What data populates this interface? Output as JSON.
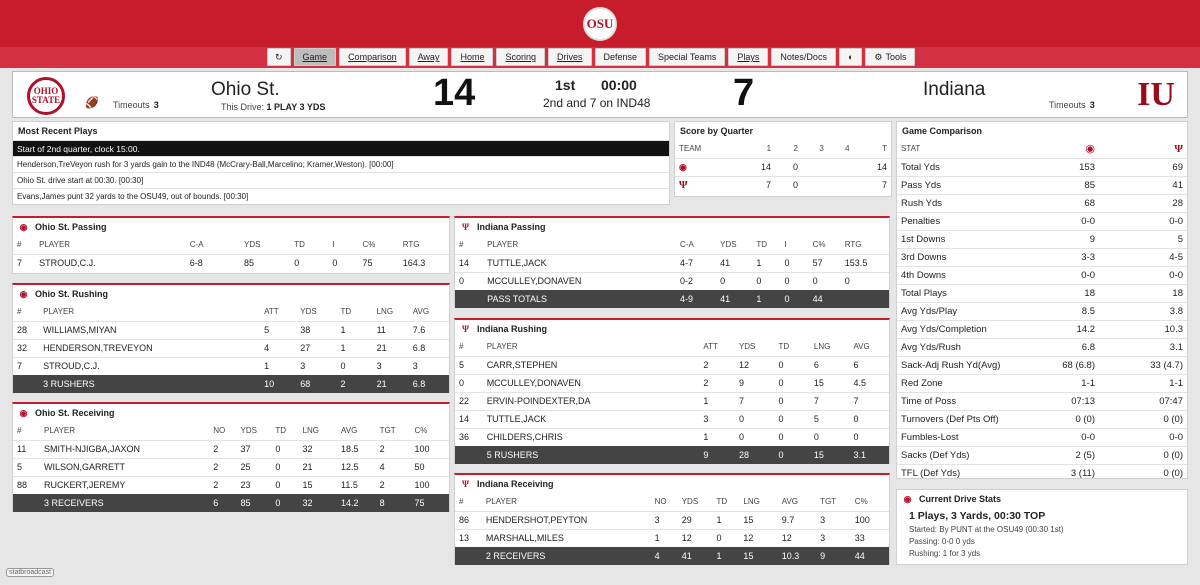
{
  "nav": [
    "Game",
    "Comparison",
    "Away",
    "Home",
    "Scoring",
    "Drives",
    "Defense",
    "Special Teams",
    "Plays",
    "Notes/Docs",
    "Tools"
  ],
  "header": {
    "away_name": "Ohio St.",
    "away_score": "14",
    "away_timeouts_label": "Timeouts",
    "away_timeouts": "3",
    "drive_label": "This Drive:",
    "drive_value": "1 PLAY 3 YDS",
    "period": "1st",
    "clock": "00:00",
    "down": "2nd and 7 on IND48",
    "home_name": "Indiana",
    "home_score": "7",
    "home_timeouts_label": "Timeouts",
    "home_timeouts": "3",
    "away_logo": "OHIO STATE",
    "home_logo": "IU"
  },
  "recent_plays": {
    "title": "Most Recent Plays",
    "items": [
      "Start of 2nd quarter, clock 15:00.",
      "Henderson,TreVeyon rush for 3 yards gain to the IND48 (McCrary-Ball,Marcelino; Kramer,Weston). [00:00]",
      "Ohio St. drive start at 00:30. [00:30]",
      "Evans,James punt 32 yards to the OSU49, out of bounds. [00:30]"
    ]
  },
  "score_by_quarter": {
    "title": "Score by Quarter",
    "headers": [
      "TEAM",
      "1",
      "2",
      "3",
      "4",
      "T"
    ],
    "rows": [
      [
        "",
        "14",
        "0",
        "",
        "",
        "14"
      ],
      [
        "",
        "7",
        "0",
        "",
        "",
        "7"
      ]
    ]
  },
  "osu_passing": {
    "title": "Ohio St. Passing",
    "headers": [
      "#",
      "PLAYER",
      "C-A",
      "YDS",
      "TD",
      "I",
      "C%",
      "RTG"
    ],
    "rows": [
      [
        "7",
        "STROUD,C.J.",
        "6-8",
        "85",
        "0",
        "0",
        "75",
        "164.3"
      ]
    ]
  },
  "osu_rushing": {
    "title": "Ohio St. Rushing",
    "headers": [
      "#",
      "PLAYER",
      "ATT",
      "YDS",
      "TD",
      "LNG",
      "AVG"
    ],
    "rows": [
      [
        "28",
        "WILLIAMS,MIYAN",
        "5",
        "38",
        "1",
        "11",
        "7.6"
      ],
      [
        "32",
        "HENDERSON,TREVEYON",
        "4",
        "27",
        "1",
        "21",
        "6.8"
      ],
      [
        "7",
        "STROUD,C.J.",
        "1",
        "3",
        "0",
        "3",
        "3"
      ]
    ],
    "total": [
      "",
      "3 RUSHERS",
      "10",
      "68",
      "2",
      "21",
      "6.8"
    ]
  },
  "osu_receiving": {
    "title": "Ohio St. Receiving",
    "headers": [
      "#",
      "PLAYER",
      "NO",
      "YDS",
      "TD",
      "LNG",
      "AVG",
      "TGT",
      "C%"
    ],
    "rows": [
      [
        "11",
        "SMITH-NJIGBA,JAXON",
        "2",
        "37",
        "0",
        "32",
        "18.5",
        "2",
        "100"
      ],
      [
        "5",
        "WILSON,GARRETT",
        "2",
        "25",
        "0",
        "21",
        "12.5",
        "4",
        "50"
      ],
      [
        "88",
        "RUCKERT,JEREMY",
        "2",
        "23",
        "0",
        "15",
        "11.5",
        "2",
        "100"
      ]
    ],
    "total": [
      "",
      "3 RECEIVERS",
      "6",
      "85",
      "0",
      "32",
      "14.2",
      "8",
      "75"
    ]
  },
  "iu_passing": {
    "title": "Indiana Passing",
    "headers": [
      "#",
      "PLAYER",
      "C-A",
      "YDS",
      "TD",
      "I",
      "C%",
      "RTG"
    ],
    "rows": [
      [
        "14",
        "TUTTLE,JACK",
        "4-7",
        "41",
        "1",
        "0",
        "57",
        "153.5"
      ],
      [
        "0",
        "MCCULLEY,DONAVEN",
        "0-2",
        "0",
        "0",
        "0",
        "0",
        "0"
      ]
    ],
    "total": [
      "",
      "PASS TOTALS",
      "4-9",
      "41",
      "1",
      "0",
      "44",
      ""
    ]
  },
  "iu_rushing": {
    "title": "Indiana Rushing",
    "headers": [
      "#",
      "PLAYER",
      "ATT",
      "YDS",
      "TD",
      "LNG",
      "AVG"
    ],
    "rows": [
      [
        "5",
        "CARR,STEPHEN",
        "2",
        "12",
        "0",
        "6",
        "6"
      ],
      [
        "0",
        "MCCULLEY,DONAVEN",
        "2",
        "9",
        "0",
        "15",
        "4.5"
      ],
      [
        "22",
        "ERVIN-POINDEXTER,DA",
        "1",
        "7",
        "0",
        "7",
        "7"
      ],
      [
        "14",
        "TUTTLE,JACK",
        "3",
        "0",
        "0",
        "5",
        "0"
      ],
      [
        "36",
        "CHILDERS,CHRIS",
        "1",
        "0",
        "0",
        "0",
        "0"
      ]
    ],
    "total": [
      "",
      "5 RUSHERS",
      "9",
      "28",
      "0",
      "15",
      "3.1"
    ]
  },
  "iu_receiving": {
    "title": "Indiana Receiving",
    "headers": [
      "#",
      "PLAYER",
      "NO",
      "YDS",
      "TD",
      "LNG",
      "AVG",
      "TGT",
      "C%"
    ],
    "rows": [
      [
        "86",
        "HENDERSHOT,PEYTON",
        "3",
        "29",
        "1",
        "15",
        "9.7",
        "3",
        "100"
      ],
      [
        "13",
        "MARSHALL,MILES",
        "1",
        "12",
        "0",
        "12",
        "12",
        "3",
        "33"
      ]
    ],
    "total": [
      "",
      "2 RECEIVERS",
      "4",
      "41",
      "1",
      "15",
      "10.3",
      "9",
      "44"
    ]
  },
  "comparison": {
    "title": "Game Comparison",
    "stat_header": "STAT",
    "rows": [
      [
        "Total Yds",
        "153",
        "69"
      ],
      [
        "Pass Yds",
        "85",
        "41"
      ],
      [
        "Rush Yds",
        "68",
        "28"
      ],
      [
        "Penalties",
        "0-0",
        "0-0"
      ],
      [
        "1st Downs",
        "9",
        "5"
      ],
      [
        "3rd Downs",
        "3-3",
        "4-5"
      ],
      [
        "4th Downs",
        "0-0",
        "0-0"
      ],
      [
        "Total Plays",
        "18",
        "18"
      ],
      [
        "Avg Yds/Play",
        "8.5",
        "3.8"
      ],
      [
        "Avg Yds/Completion",
        "14.2",
        "10.3"
      ],
      [
        "Avg Yds/Rush",
        "6.8",
        "3.1"
      ],
      [
        "Sack-Adj Rush Yd(Avg)",
        "68 (6.8)",
        "33 (4.7)"
      ],
      [
        "Red Zone",
        "1-1",
        "1-1"
      ],
      [
        "Time of Poss",
        "07:13",
        "07:47"
      ],
      [
        "Turnovers (Def Pts Off)",
        "0 (0)",
        "0 (0)"
      ],
      [
        "Fumbles-Lost",
        "0-0",
        "0-0"
      ],
      [
        "Sacks (Def Yds)",
        "2 (5)",
        "0 (0)"
      ],
      [
        "TFL (Def Yds)",
        "3 (11)",
        "0 (0)"
      ]
    ]
  },
  "current_drive": {
    "title": "Current Drive Stats",
    "summary": "1 Plays, 3 Yards, 00:30 TOP",
    "started": "Started: By PUNT at the OSU49 (00:30 1st)",
    "passing": "Passing: 0-0 0 yds",
    "rushing": "Rushing: 1 for 3 yds"
  },
  "footer_logo": "statbroadcast"
}
